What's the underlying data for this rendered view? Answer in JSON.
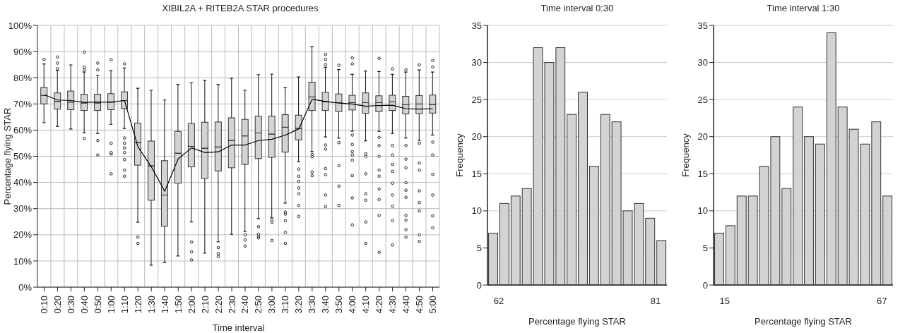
{
  "chart_data": [
    {
      "type": "box",
      "title": "XIBIL2A + RITEB2A STAR procedures",
      "xlabel": "Time interval",
      "ylabel": "Percentage flying STAR",
      "ylim": [
        0,
        100
      ],
      "yticks": [
        {
          "value": 0,
          "label": "0%"
        },
        {
          "value": 10,
          "label": "10%"
        },
        {
          "value": 20,
          "label": "20%"
        },
        {
          "value": 30,
          "label": "30%"
        },
        {
          "value": 40,
          "label": "40%"
        },
        {
          "value": 50,
          "label": "50%"
        },
        {
          "value": 60,
          "label": "60%"
        },
        {
          "value": 70,
          "label": "70%"
        },
        {
          "value": 80,
          "label": "80%"
        },
        {
          "value": 90,
          "label": "90%"
        },
        {
          "value": 100,
          "label": "100%"
        }
      ],
      "grid": true,
      "categories": [
        "0:10",
        "0:20",
        "0:30",
        "0:40",
        "0:50",
        "1:00",
        "1:10",
        "1:20",
        "1:30",
        "1:40",
        "1:50",
        "2:00",
        "2:10",
        "2:20",
        "2:30",
        "2:40",
        "2:50",
        "3:00",
        "3:10",
        "3:20",
        "3:30",
        "3:40",
        "3:50",
        "4:00",
        "4:10",
        "4:20",
        "4:30",
        "4:40",
        "4:50",
        "5:00"
      ],
      "series": [
        {
          "type": "box",
          "color": "#d3d3d3",
          "boxes": [
            {
              "low": 62.8,
              "q1": 70,
              "median": 73.2,
              "q3": 76.3,
              "high": 85.3,
              "outliers": [
                87
              ]
            },
            {
              "low": 61.4,
              "q1": 68,
              "median": 71,
              "q3": 74.2,
              "high": 82.8,
              "outliers": [
                83.4,
                85.6,
                87.9
              ]
            },
            {
              "low": 60.4,
              "q1": 67.8,
              "median": 70.7,
              "q3": 74.9,
              "high": 84.9
            },
            {
              "low": 59,
              "q1": 67.5,
              "median": 70.4,
              "q3": 73.7,
              "high": 82.2,
              "outliers": [
                56.8,
                83,
                84,
                89.8
              ]
            },
            {
              "low": 58.7,
              "q1": 67.5,
              "median": 70.4,
              "q3": 73.7,
              "high": 81,
              "outliers": [
                50.5,
                56,
                83,
                85.6
              ]
            },
            {
              "low": 62.2,
              "q1": 67.8,
              "median": 70.7,
              "q3": 73.9,
              "high": 82.7,
              "outliers": [
                43.3,
                50.9,
                51.4,
                55,
                86.9
              ]
            },
            {
              "low": 60.6,
              "q1": 68.2,
              "median": 71.3,
              "q3": 74.6,
              "high": 83.7,
              "outliers": [
                42.4,
                44.7,
                48.7,
                51.4,
                53.2,
                55,
                57,
                85.3
              ]
            },
            {
              "low": 24.8,
              "q1": 46.6,
              "median": 55.3,
              "q3": 62.7,
              "high": 76,
              "outliers": [
                16.7,
                19.1
              ]
            },
            {
              "low": 8.4,
              "q1": 33.2,
              "median": 46.4,
              "q3": 55.8,
              "high": 75.2
            },
            {
              "low": 9.4,
              "q1": 23.3,
              "median": 35.2,
              "q3": 48.3,
              "high": 71.5
            },
            {
              "low": 11.9,
              "q1": 39.7,
              "median": 51.2,
              "q3": 59.5,
              "high": 77.4
            },
            {
              "low": 24.9,
              "q1": 46,
              "median": 53.8,
              "q3": 62.5,
              "high": 78.1,
              "outliers": [
                10.4,
                13.5,
                17.2
              ]
            },
            {
              "low": 13,
              "q1": 41.5,
              "median": 53.1,
              "q3": 63,
              "high": 79
            },
            {
              "low": 17.3,
              "q1": 44.4,
              "median": 53.6,
              "q3": 63.1,
              "high": 77.4,
              "outliers": [
                11.7,
                12.8,
                15.1
              ]
            },
            {
              "low": 20.2,
              "q1": 45.6,
              "median": 56.1,
              "q3": 64.7,
              "high": 79.8
            },
            {
              "low": 21.3,
              "q1": 46.9,
              "median": 57.8,
              "q3": 64.1,
              "high": 75.2,
              "outliers": [
                15.7,
                18,
                20
              ]
            },
            {
              "low": 26.2,
              "q1": 49.1,
              "median": 58.9,
              "q3": 65.3,
              "high": 81.2,
              "outliers": [
                18.8,
                19.5,
                20.2,
                23.1
              ]
            },
            {
              "low": 26.5,
              "q1": 49.6,
              "median": 58.5,
              "q3": 65.3,
              "high": 81.4,
              "outliers": [
                17.8,
                24.8,
                25.6
              ]
            },
            {
              "low": 32.1,
              "q1": 51.6,
              "median": 61.1,
              "q3": 65.9,
              "high": 76.2,
              "outliers": [
                16.7,
                20.9,
                25.4,
                27.9,
                28.7
              ]
            },
            {
              "low": 48,
              "q1": 56.3,
              "median": 60.7,
              "q3": 65.7,
              "high": 80.3,
              "outliers": [
                27,
                31.2,
                35.7,
                37.9,
                40.4,
                42.4,
                45.1
              ]
            },
            {
              "low": 51.8,
              "q1": 67.5,
              "median": 72.7,
              "q3": 78.3,
              "high": 91.9,
              "outliers": [
                42.6,
                44,
                49.8,
                50.7
              ]
            },
            {
              "low": 57.4,
              "q1": 67.5,
              "median": 70.9,
              "q3": 74.4,
              "high": 84,
              "outliers": [
                30.8,
                35.2,
                43,
                45.3,
                52.7,
                54.3,
                85,
                87,
                88.9
              ]
            },
            {
              "low": 57,
              "q1": 67.1,
              "median": 70.5,
              "q3": 73.8,
              "high": 83.1,
              "outliers": [
                31.2,
                38.6,
                46.4,
                55.2,
                84.8
              ]
            },
            {
              "low": 59.6,
              "q1": 67.7,
              "median": 70.5,
              "q3": 73.3,
              "high": 81.3,
              "outliers": [
                23.8,
                34.1,
                42.6,
                48.5,
                50.5,
                51.8,
                54.5,
                58.1,
                85.3,
                87.6
              ]
            },
            {
              "low": 55.9,
              "q1": 66.4,
              "median": 70.5,
              "q3": 74.2,
              "high": 82.6,
              "outliers": [
                16.7,
                24.9,
                33.2,
                35.7,
                43.3,
                50,
                50.9
              ]
            },
            {
              "low": 59.5,
              "q1": 67.1,
              "median": 70.5,
              "q3": 73.1,
              "high": 82.4,
              "outliers": [
                13.3,
                27.4,
                33.5,
                37.5,
                42.4,
                44.7,
                50,
                54.1,
                57.2,
                87.4
              ]
            },
            {
              "low": 58.7,
              "q1": 67.5,
              "median": 70.8,
              "q3": 73.3,
              "high": 81.3,
              "outliers": [
                16.1,
                25.4,
                30.9,
                35.2,
                39.7,
                44.2,
                46.9,
                50.5,
                54.1,
                83.4
              ]
            },
            {
              "low": 57,
              "q1": 66.2,
              "median": 69.7,
              "q3": 72.9,
              "high": 82.2,
              "outliers": [
                19.1,
                22,
                25.6,
                27.4,
                34.3,
                37,
                39.9,
                45.6,
                48.9,
                54.1,
                83.1
              ]
            },
            {
              "low": 56.1,
              "q1": 66.3,
              "median": 70,
              "q3": 73.2,
              "high": 83,
              "outliers": [
                17.5,
                20,
                29.1,
                32.3,
                36.8,
                44.7,
                47.4,
                55,
                84.9
              ]
            },
            {
              "low": 58.1,
              "q1": 66.5,
              "median": 69.8,
              "q3": 73.4,
              "high": 82.2,
              "outliers": [
                22.7,
                27.2,
                35.2,
                43.1,
                50.5,
                55.4,
                84.1,
                86.6
              ]
            }
          ]
        },
        {
          "type": "line",
          "color": "#000000",
          "values": [
            73.5,
            71.5,
            71.3,
            70.6,
            70.7,
            70.7,
            71.3,
            53.6,
            46,
            36.6,
            49,
            53.2,
            51.4,
            51.7,
            54.3,
            54.3,
            56,
            56.5,
            58.1,
            60.4,
            71.8,
            70.9,
            70.3,
            70,
            69.1,
            69.4,
            69.5,
            68.2,
            68,
            68.2
          ]
        }
      ]
    },
    {
      "type": "histogram",
      "title": "Time interval 0:30",
      "xlabel": "Percentage flying STAR",
      "ylabel": "Frequency",
      "color": "#d3d3d3",
      "grid": "y",
      "bins": [
        60.64,
        62,
        63.36,
        64.71,
        66.07,
        67.43,
        68.79,
        70.14,
        71.5,
        72.86,
        74.21,
        75.57,
        76.93,
        78.29,
        79.64,
        81,
        82.36
      ],
      "values": [
        7,
        11,
        12,
        13,
        32,
        30,
        32,
        23,
        26,
        16,
        23,
        22,
        10,
        11,
        9,
        6
      ],
      "xlim": [
        60.64,
        82.36
      ],
      "xticks": [
        62,
        81
      ],
      "ylim": [
        0,
        35
      ],
      "yticks": [
        0,
        5,
        10,
        15,
        20,
        25,
        30,
        35
      ]
    },
    {
      "type": "histogram",
      "title": "Time interval 1:30",
      "xlabel": "Percentage flying STAR",
      "ylabel": "Frequency",
      "color": "#d3d3d3",
      "grid": "y",
      "bins": [
        11.29,
        15,
        18.71,
        22.43,
        26.14,
        29.86,
        33.57,
        37.29,
        41,
        44.71,
        48.43,
        52.14,
        55.86,
        59.57,
        63.29,
        67,
        70.71
      ],
      "values": [
        7,
        8,
        12,
        12,
        16,
        20,
        13,
        24,
        20,
        19,
        34,
        24,
        21,
        19,
        22,
        12
      ],
      "xlim": [
        11.29,
        70.71
      ],
      "xticks": [
        15,
        67
      ],
      "ylim": [
        0,
        35
      ],
      "yticks": [
        0,
        5,
        10,
        15,
        20,
        25,
        30,
        35
      ]
    }
  ]
}
